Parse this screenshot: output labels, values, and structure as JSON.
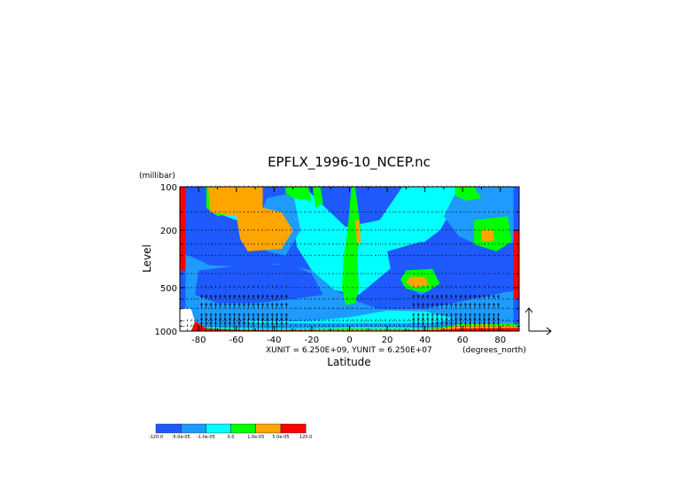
{
  "chart_data": {
    "type": "heatmap",
    "title": "EPFLX_1996-10_NCEP.nc",
    "xlabel": "Latitude",
    "ylabel": "Level",
    "y_units": "(millibar)",
    "x_units": "(degrees_north)",
    "vector_units": "XUNIT = 6.250E+09, YUNIT = 6.250E+07",
    "x_ticks": [
      -80,
      -60,
      -40,
      -20,
      0,
      20,
      40,
      60,
      80
    ],
    "x_tick_labels": [
      "-80",
      "-60",
      "-40",
      "-20",
      "0",
      "20",
      "40",
      "60",
      "80"
    ],
    "y_ticks": [
      100,
      200,
      500,
      1000
    ],
    "y_tick_labels": [
      "100",
      "200",
      "500",
      "1000"
    ],
    "xlim": [
      -90,
      90
    ],
    "ylim": [
      1000,
      100
    ],
    "y_scale": "log",
    "pressure_levels": [
      100,
      150,
      200,
      250,
      300,
      400,
      500,
      600,
      700,
      850,
      925,
      1000
    ],
    "colorbar": {
      "levels": [
        "-120.0",
        "-5.0e-05",
        "-1.0e-05",
        "0.0",
        "1.0e-05",
        "5.0e-05",
        "120.0"
      ],
      "colors": [
        "#1e5aff",
        "#1e9bff",
        "#00ffff",
        "#00ff00",
        "#ffa500",
        "#ff0000"
      ]
    },
    "regions": [
      {
        "category": 1,
        "polygon": [
          [
            -90,
            100
          ],
          [
            90,
            100
          ],
          [
            90,
            1000
          ],
          [
            -90,
            1000
          ]
        ]
      },
      {
        "category": 3,
        "polygon": [
          [
            -76,
            100
          ],
          [
            -32,
            100
          ],
          [
            -28,
            260
          ],
          [
            -20,
            380
          ],
          [
            -8,
            520
          ],
          [
            5,
            560
          ],
          [
            30,
            300
          ],
          [
            48,
            200
          ],
          [
            58,
            120
          ],
          [
            58,
            100
          ],
          [
            28,
            100
          ],
          [
            16,
            170
          ],
          [
            -2,
            190
          ],
          [
            -18,
            120
          ],
          [
            -24,
            100
          ]
        ]
      },
      {
        "category": 3,
        "polygon": [
          [
            -76,
            100
          ],
          [
            -60,
            100
          ],
          [
            -52,
            130
          ],
          [
            -60,
            170
          ],
          [
            -72,
            150
          ]
        ]
      },
      {
        "category": 2,
        "polygon": [
          [
            -90,
            280
          ],
          [
            -74,
            350
          ],
          [
            -50,
            360
          ],
          [
            -40,
            340
          ],
          [
            -28,
            360
          ],
          [
            -20,
            380
          ],
          [
            -8,
            520
          ],
          [
            4,
            620
          ],
          [
            15,
            700
          ],
          [
            40,
            700
          ],
          [
            60,
            620
          ],
          [
            82,
            540
          ],
          [
            90,
            520
          ],
          [
            90,
            1000
          ],
          [
            -90,
            1000
          ]
        ]
      },
      {
        "category": 2,
        "polygon": [
          [
            58,
            100
          ],
          [
            90,
            100
          ],
          [
            90,
            240
          ],
          [
            70,
            260
          ],
          [
            58,
            220
          ],
          [
            50,
            160
          ]
        ]
      },
      {
        "category": 2,
        "polygon": [
          [
            -44,
            120
          ],
          [
            -30,
            110
          ],
          [
            -26,
            200
          ],
          [
            -34,
            300
          ],
          [
            -44,
            280
          ],
          [
            -50,
            200
          ]
        ]
      },
      {
        "category": 2,
        "polygon": [
          [
            34,
            360
          ],
          [
            46,
            360
          ],
          [
            48,
            480
          ],
          [
            38,
            560
          ],
          [
            28,
            480
          ]
        ]
      },
      {
        "category": 1,
        "polygon": [
          [
            -80,
            380
          ],
          [
            -50,
            340
          ],
          [
            -30,
            350
          ],
          [
            -20,
            400
          ],
          [
            -14,
            560
          ],
          [
            -30,
            600
          ],
          [
            -50,
            640
          ],
          [
            -70,
            640
          ],
          [
            -82,
            560
          ]
        ]
      },
      {
        "category": 1,
        "polygon": [
          [
            20,
            280
          ],
          [
            38,
            240
          ],
          [
            60,
            300
          ],
          [
            84,
            380
          ],
          [
            86,
            500
          ],
          [
            70,
            560
          ],
          [
            55,
            600
          ],
          [
            42,
            620
          ],
          [
            44,
            480
          ],
          [
            34,
            420
          ],
          [
            22,
            380
          ]
        ]
      },
      {
        "category": 1,
        "polygon": [
          [
            -56,
            130
          ],
          [
            -48,
            140
          ],
          [
            -50,
            180
          ],
          [
            -58,
            170
          ]
        ]
      },
      {
        "category": 3,
        "polygon": [
          [
            -56,
            840
          ],
          [
            -40,
            860
          ],
          [
            -20,
            850
          ],
          [
            0,
            800
          ],
          [
            20,
            720
          ],
          [
            40,
            730
          ],
          [
            56,
            820
          ],
          [
            40,
            900
          ],
          [
            20,
            900
          ],
          [
            -20,
            910
          ],
          [
            -50,
            900
          ]
        ]
      },
      {
        "category": 4,
        "polygon": [
          [
            -76,
            100
          ],
          [
            -52,
            100
          ],
          [
            -48,
            130
          ],
          [
            -58,
            150
          ],
          [
            -70,
            160
          ],
          [
            -76,
            140
          ]
        ]
      },
      {
        "category": 4,
        "polygon": [
          [
            1,
            100
          ],
          [
            3,
            100
          ],
          [
            6,
            200
          ],
          [
            4,
            300
          ],
          [
            5,
            500
          ],
          [
            3,
            640
          ],
          [
            -2,
            660
          ],
          [
            -4,
            500
          ],
          [
            -3,
            300
          ],
          [
            -1,
            200
          ]
        ]
      },
      {
        "category": 4,
        "polygon": [
          [
            -34,
            100
          ],
          [
            -22,
            100
          ],
          [
            -20,
            125
          ],
          [
            -30,
            120
          ],
          [
            -34,
            110
          ]
        ]
      },
      {
        "category": 4,
        "polygon": [
          [
            56,
            100
          ],
          [
            66,
            100
          ],
          [
            70,
            120
          ],
          [
            62,
            125
          ],
          [
            56,
            115
          ]
        ]
      },
      {
        "category": 4,
        "polygon": [
          [
            66,
            170
          ],
          [
            84,
            160
          ],
          [
            86,
            240
          ],
          [
            78,
            280
          ],
          [
            66,
            250
          ]
        ]
      },
      {
        "category": 4,
        "polygon": [
          [
            30,
            380
          ],
          [
            44,
            370
          ],
          [
            48,
            470
          ],
          [
            40,
            540
          ],
          [
            30,
            510
          ],
          [
            27,
            440
          ]
        ]
      },
      {
        "category": 4,
        "polygon": [
          [
            -20,
            90
          ],
          [
            -16,
            90
          ],
          [
            -14,
            130
          ],
          [
            -18,
            140
          ]
        ]
      },
      {
        "category": 5,
        "polygon": [
          [
            -75,
            100
          ],
          [
            -46,
            100
          ],
          [
            -46,
            150
          ],
          [
            -60,
            160
          ],
          [
            -74,
            150
          ]
        ]
      },
      {
        "category": 5,
        "polygon": [
          [
            -60,
            160
          ],
          [
            -46,
            140
          ],
          [
            -36,
            150
          ],
          [
            -30,
            200
          ],
          [
            -36,
            270
          ],
          [
            -54,
            280
          ],
          [
            -58,
            230
          ]
        ]
      },
      {
        "category": 5,
        "polygon": [
          [
            3,
            170
          ],
          [
            5,
            170
          ],
          [
            6,
            240
          ],
          [
            4,
            250
          ]
        ]
      },
      {
        "category": 5,
        "polygon": [
          [
            70,
            200
          ],
          [
            76,
            200
          ],
          [
            77,
            235
          ],
          [
            70,
            240
          ]
        ]
      },
      {
        "category": 5,
        "polygon": [
          [
            32,
            420
          ],
          [
            40,
            420
          ],
          [
            42,
            480
          ],
          [
            34,
            500
          ],
          [
            30,
            460
          ]
        ]
      },
      {
        "category": 2,
        "polygon": [
          [
            -90,
            880
          ],
          [
            90,
            880
          ],
          [
            90,
            1000
          ],
          [
            -90,
            1000
          ]
        ]
      },
      {
        "category": 3,
        "polygon": [
          [
            -84,
            930
          ],
          [
            -60,
            950
          ],
          [
            -40,
            960
          ],
          [
            -20,
            955
          ],
          [
            0,
            940
          ],
          [
            20,
            940
          ],
          [
            40,
            950
          ],
          [
            60,
            950
          ],
          [
            80,
            930
          ],
          [
            90,
            920
          ],
          [
            90,
            1000
          ],
          [
            -84,
            1000
          ]
        ]
      },
      {
        "category": 4,
        "polygon": [
          [
            -84,
            950
          ],
          [
            -70,
            960
          ],
          [
            -60,
            970
          ],
          [
            -40,
            975
          ],
          [
            -20,
            970
          ],
          [
            0,
            960
          ],
          [
            20,
            965
          ],
          [
            40,
            970
          ],
          [
            50,
            930
          ],
          [
            62,
            880
          ],
          [
            76,
            880
          ],
          [
            90,
            890
          ],
          [
            90,
            1000
          ],
          [
            -84,
            1000
          ]
        ]
      },
      {
        "category": 5,
        "polygon": [
          [
            -86,
            930
          ],
          [
            -78,
            960
          ],
          [
            -70,
            975
          ],
          [
            -50,
            985
          ],
          [
            -20,
            985
          ],
          [
            0,
            980
          ],
          [
            30,
            985
          ],
          [
            48,
            960
          ],
          [
            58,
            910
          ],
          [
            72,
            900
          ],
          [
            88,
            920
          ],
          [
            90,
            1000
          ],
          [
            -86,
            1000
          ]
        ]
      },
      {
        "category": 6,
        "polygon": [
          [
            -86,
            740
          ],
          [
            -82,
            850
          ],
          [
            -76,
            960
          ],
          [
            -60,
            980
          ],
          [
            -20,
            990
          ],
          [
            20,
            992
          ],
          [
            48,
            980
          ],
          [
            60,
            960
          ],
          [
            90,
            950
          ],
          [
            90,
            1000
          ],
          [
            -86,
            1000
          ]
        ]
      },
      {
        "category": 6,
        "polygon": [
          [
            -90,
            100
          ],
          [
            -87,
            100
          ],
          [
            -87,
            380
          ],
          [
            -90,
            380
          ]
        ]
      },
      {
        "category": 1,
        "polygon": [
          [
            -90,
            380
          ],
          [
            -87,
            380
          ],
          [
            -87,
            700
          ],
          [
            -90,
            700
          ]
        ]
      },
      {
        "category": 6,
        "polygon": [
          [
            87,
            200
          ],
          [
            90,
            200
          ],
          [
            90,
            600
          ],
          [
            87,
            600
          ]
        ]
      },
      {
        "category": 1,
        "polygon": [
          [
            87,
            100
          ],
          [
            90,
            100
          ],
          [
            90,
            200
          ],
          [
            87,
            200
          ]
        ]
      },
      {
        "category": 1,
        "polygon": [
          [
            87,
            600
          ],
          [
            90,
            600
          ],
          [
            90,
            900
          ],
          [
            87,
            900
          ]
        ]
      },
      {
        "category": 0,
        "polygon": [
          [
            -90,
            700
          ],
          [
            -84,
            700
          ],
          [
            -82,
            860
          ],
          [
            -84,
            1000
          ],
          [
            -90,
            1000
          ]
        ]
      }
    ]
  }
}
